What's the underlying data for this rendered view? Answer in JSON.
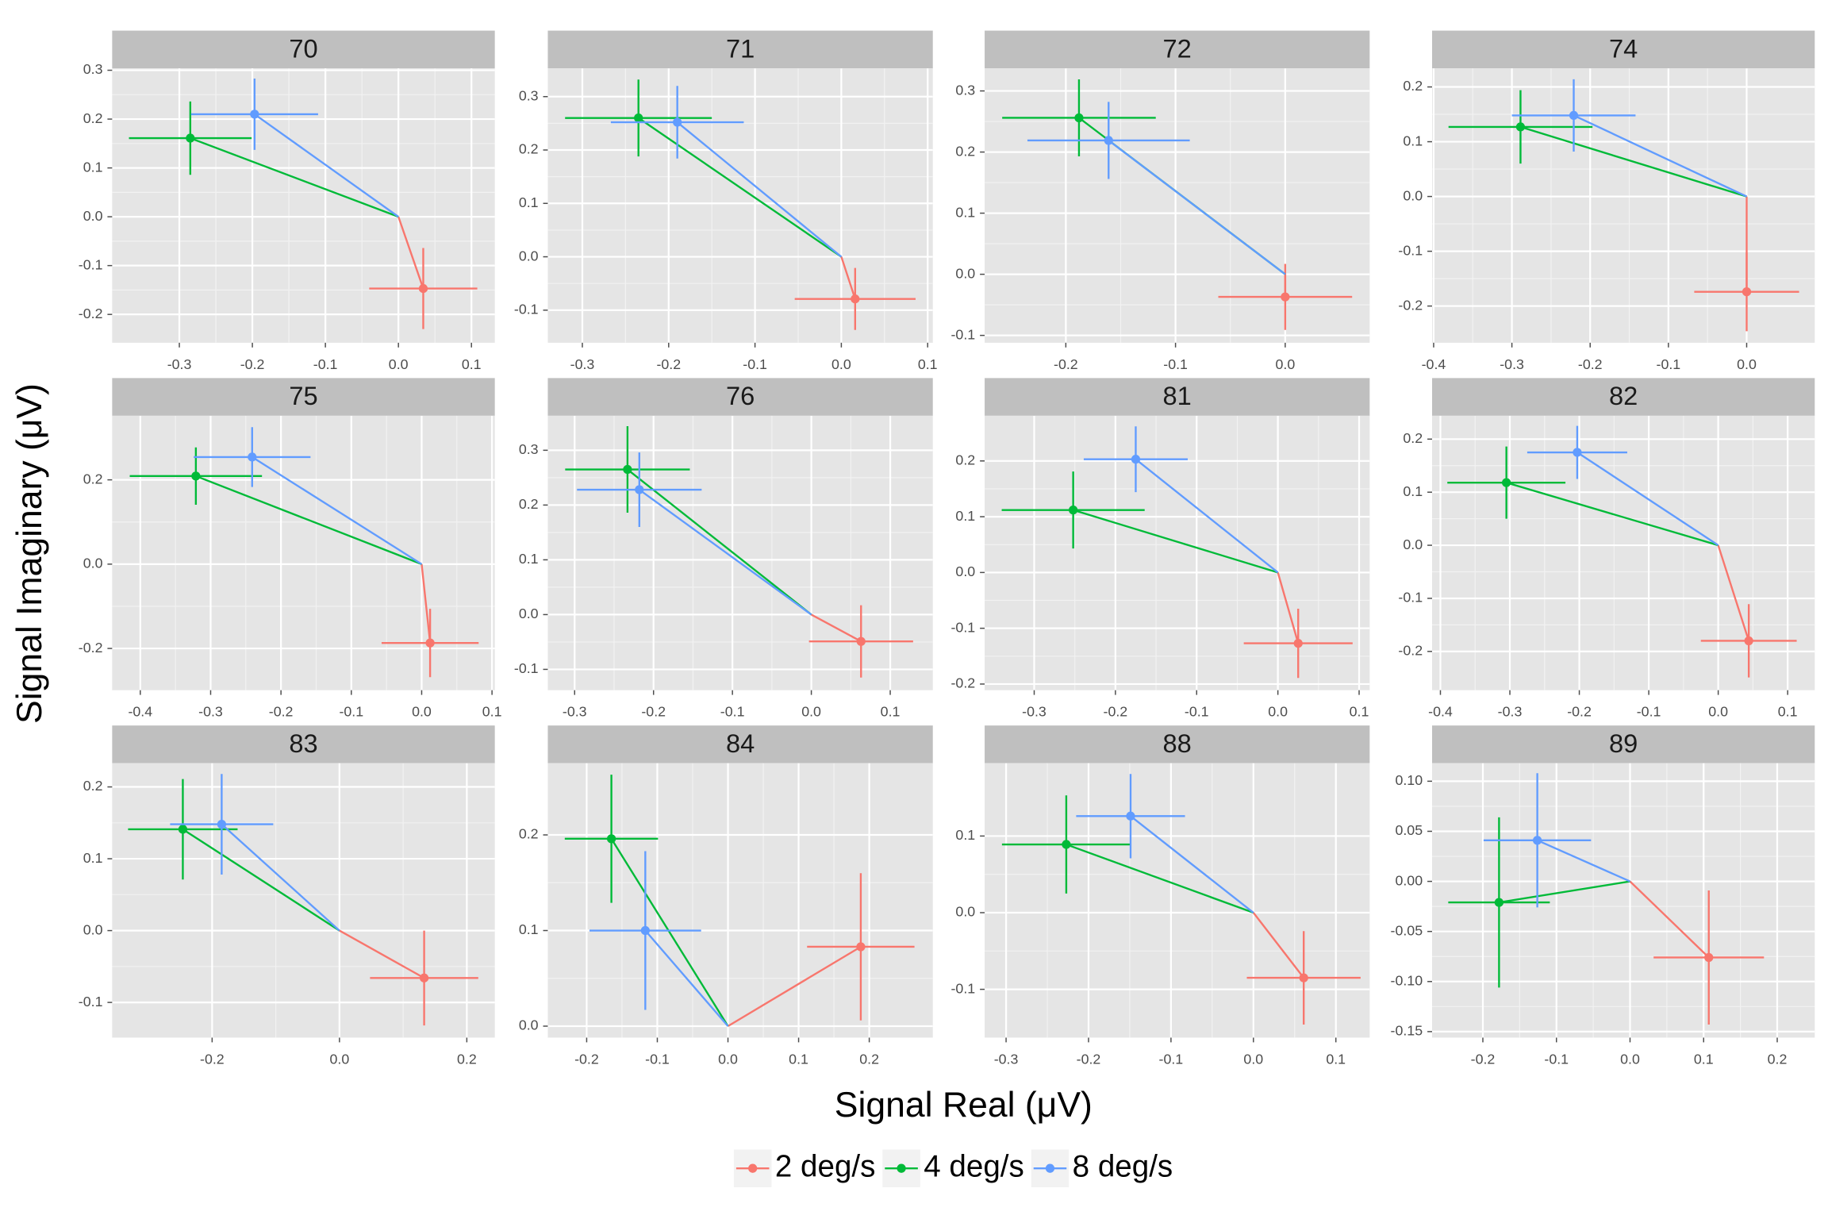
{
  "xlabel": "Signal Real (μV)",
  "ylabel": "Signal Imaginary (μV)",
  "chart_data": [
    {
      "type": "scatter",
      "title": "70",
      "xlim": [
        -0.392,
        0.132
      ],
      "ylim": [
        -0.258,
        0.304
      ],
      "xticks": [
        -0.3,
        -0.2,
        -0.1,
        {
          "value": 0,
          "label": "0.0"
        },
        0.1
      ],
      "yticks": [
        -0.2,
        -0.1,
        {
          "value": 0,
          "label": "0.0"
        },
        0.1,
        0.2,
        0.3
      ],
      "grid": true,
      "series": [
        {
          "name": "2 deg/s",
          "color": "#F8766D",
          "x": [
            0.034
          ],
          "values": [
            -0.147
          ],
          "x_err": [
            0.074
          ],
          "y_err": [
            0.083
          ]
        },
        {
          "name": "4 deg/s",
          "color": "#00BA38",
          "x": [
            -0.285
          ],
          "values": [
            0.161
          ],
          "x_err": [
            0.084
          ],
          "y_err": [
            0.075
          ]
        },
        {
          "name": "8 deg/s",
          "color": "#619CFF",
          "x": [
            -0.197
          ],
          "values": [
            0.21
          ],
          "x_err": [
            0.087
          ],
          "y_err": [
            0.073
          ]
        }
      ]
    },
    {
      "type": "scatter",
      "title": "71",
      "xlim": [
        -0.34,
        0.106
      ],
      "ylim": [
        -0.161,
        0.353
      ],
      "xticks": [
        -0.3,
        -0.2,
        -0.1,
        {
          "value": 0,
          "label": "0.0"
        },
        0.1
      ],
      "yticks": [
        -0.1,
        {
          "value": 0,
          "label": "0.0"
        },
        0.1,
        0.2,
        0.3
      ],
      "grid": true,
      "series": [
        {
          "name": "2 deg/s",
          "color": "#F8766D",
          "x": [
            0.016
          ],
          "values": [
            -0.079
          ],
          "x_err": [
            0.07
          ],
          "y_err": [
            0.058
          ]
        },
        {
          "name": "4 deg/s",
          "color": "#00BA38",
          "x": [
            -0.235
          ],
          "values": [
            0.26
          ],
          "x_err": [
            0.085
          ],
          "y_err": [
            0.072
          ]
        },
        {
          "name": "8 deg/s",
          "color": "#619CFF",
          "x": [
            -0.19
          ],
          "values": [
            0.252
          ],
          "x_err": [
            0.077
          ],
          "y_err": [
            0.068
          ]
        }
      ]
    },
    {
      "type": "scatter",
      "title": "72",
      "xlim": [
        -0.274,
        0.077
      ],
      "ylim": [
        -0.112,
        0.337
      ],
      "xticks": [
        -0.2,
        -0.1,
        {
          "value": 0,
          "label": "0.0"
        }
      ],
      "yticks": [
        -0.1,
        {
          "value": 0,
          "label": "0.0"
        },
        0.1,
        0.2,
        0.3
      ],
      "grid": true,
      "series": [
        {
          "name": "2 deg/s",
          "color": "#F8766D",
          "x": [
            0.0
          ],
          "values": [
            -0.037
          ],
          "x_err": [
            0.061
          ],
          "y_err": [
            0.054
          ]
        },
        {
          "name": "4 deg/s",
          "color": "#00BA38",
          "x": [
            -0.188
          ],
          "values": [
            0.256
          ],
          "x_err": [
            0.07
          ],
          "y_err": [
            0.063
          ]
        },
        {
          "name": "8 deg/s",
          "color": "#619CFF",
          "x": [
            -0.161
          ],
          "values": [
            0.219
          ],
          "x_err": [
            0.074
          ],
          "y_err": [
            0.063
          ]
        }
      ]
    },
    {
      "type": "scatter",
      "title": "74",
      "xlim": [
        -0.402,
        0.087
      ],
      "ylim": [
        -0.267,
        0.234
      ],
      "xticks": [
        -0.4,
        -0.3,
        -0.2,
        -0.1,
        {
          "value": 0,
          "label": "0.0"
        }
      ],
      "yticks": [
        -0.2,
        -0.1,
        {
          "value": 0,
          "label": "0.0"
        },
        0.1,
        0.2
      ],
      "grid": true,
      "series": [
        {
          "name": "2 deg/s",
          "color": "#F8766D",
          "x": [
            0.0
          ],
          "values": [
            -0.174
          ],
          "x_err": [
            0.067
          ],
          "y_err": [
            0.072
          ]
        },
        {
          "name": "4 deg/s",
          "color": "#00BA38",
          "x": [
            -0.289
          ],
          "values": [
            0.127
          ],
          "x_err": [
            0.092
          ],
          "y_err": [
            0.067
          ]
        },
        {
          "name": "8 deg/s",
          "color": "#619CFF",
          "x": [
            -0.221
          ],
          "values": [
            0.148
          ],
          "x_err": [
            0.079
          ],
          "y_err": [
            0.066
          ]
        }
      ]
    },
    {
      "type": "scatter",
      "title": "75",
      "xlim": [
        -0.44,
        0.104
      ],
      "ylim": [
        -0.299,
        0.352
      ],
      "xticks": [
        -0.4,
        -0.3,
        -0.2,
        -0.1,
        {
          "value": 0,
          "label": "0.0"
        },
        0.1
      ],
      "yticks": [
        -0.2,
        {
          "value": 0,
          "label": "0.0"
        },
        0.2
      ],
      "grid": true,
      "series": [
        {
          "name": "2 deg/s",
          "color": "#F8766D",
          "x": [
            0.012
          ],
          "values": [
            -0.187
          ],
          "x_err": [
            0.069
          ],
          "y_err": [
            0.081
          ]
        },
        {
          "name": "4 deg/s",
          "color": "#00BA38",
          "x": [
            -0.321
          ],
          "values": [
            0.209
          ],
          "x_err": [
            0.094
          ],
          "y_err": [
            0.068
          ]
        },
        {
          "name": "8 deg/s",
          "color": "#619CFF",
          "x": [
            -0.241
          ],
          "values": [
            0.254
          ],
          "x_err": [
            0.083
          ],
          "y_err": [
            0.071
          ]
        }
      ]
    },
    {
      "type": "scatter",
      "title": "76",
      "xlim": [
        -0.334,
        0.154
      ],
      "ylim": [
        -0.138,
        0.363
      ],
      "xticks": [
        -0.3,
        -0.2,
        -0.1,
        {
          "value": 0,
          "label": "0.0"
        },
        0.1
      ],
      "yticks": [
        -0.1,
        {
          "value": 0,
          "label": "0.0"
        },
        0.1,
        0.2,
        0.3
      ],
      "grid": true,
      "series": [
        {
          "name": "2 deg/s",
          "color": "#F8766D",
          "x": [
            0.063
          ],
          "values": [
            -0.049
          ],
          "x_err": [
            0.066
          ],
          "y_err": [
            0.066
          ]
        },
        {
          "name": "4 deg/s",
          "color": "#00BA38",
          "x": [
            -0.233
          ],
          "values": [
            0.265
          ],
          "x_err": [
            0.079
          ],
          "y_err": [
            0.079
          ]
        },
        {
          "name": "8 deg/s",
          "color": "#619CFF",
          "x": [
            -0.218
          ],
          "values": [
            0.228
          ],
          "x_err": [
            0.079
          ],
          "y_err": [
            0.068
          ]
        }
      ]
    },
    {
      "type": "scatter",
      "title": "81",
      "xlim": [
        -0.361,
        0.113
      ],
      "ylim": [
        -0.211,
        0.281
      ],
      "xticks": [
        -0.3,
        -0.2,
        -0.1,
        {
          "value": 0,
          "label": "0.0"
        },
        0.1
      ],
      "yticks": [
        -0.2,
        -0.1,
        {
          "value": 0,
          "label": "0.0"
        },
        0.1,
        0.2
      ],
      "grid": true,
      "series": [
        {
          "name": "2 deg/s",
          "color": "#F8766D",
          "x": [
            0.025
          ],
          "values": [
            -0.127
          ],
          "x_err": [
            0.067
          ],
          "y_err": [
            0.062
          ]
        },
        {
          "name": "4 deg/s",
          "color": "#00BA38",
          "x": [
            -0.252
          ],
          "values": [
            0.112
          ],
          "x_err": [
            0.088
          ],
          "y_err": [
            0.069
          ]
        },
        {
          "name": "8 deg/s",
          "color": "#619CFF",
          "x": [
            -0.175
          ],
          "values": [
            0.203
          ],
          "x_err": [
            0.064
          ],
          "y_err": [
            0.059
          ]
        }
      ]
    },
    {
      "type": "scatter",
      "title": "82",
      "xlim": [
        -0.412,
        0.139
      ],
      "ylim": [
        -0.273,
        0.244
      ],
      "xticks": [
        -0.4,
        -0.3,
        -0.2,
        -0.1,
        {
          "value": 0,
          "label": "0.0"
        },
        0.1
      ],
      "yticks": [
        -0.2,
        -0.1,
        {
          "value": 0,
          "label": "0.0"
        },
        0.1,
        0.2
      ],
      "grid": true,
      "series": [
        {
          "name": "2 deg/s",
          "color": "#F8766D",
          "x": [
            0.044
          ],
          "values": [
            -0.18
          ],
          "x_err": [
            0.069
          ],
          "y_err": [
            0.069
          ]
        },
        {
          "name": "4 deg/s",
          "color": "#00BA38",
          "x": [
            -0.305
          ],
          "values": [
            0.118
          ],
          "x_err": [
            0.085
          ],
          "y_err": [
            0.068
          ]
        },
        {
          "name": "8 deg/s",
          "color": "#619CFF",
          "x": [
            -0.203
          ],
          "values": [
            0.175
          ],
          "x_err": [
            0.072
          ],
          "y_err": [
            0.05
          ]
        }
      ]
    },
    {
      "type": "scatter",
      "title": "83",
      "xlim": [
        -0.357,
        0.244
      ],
      "ylim": [
        -0.149,
        0.233
      ],
      "xticks": [
        -0.2,
        {
          "value": 0,
          "label": "0.0"
        },
        0.2
      ],
      "yticks": [
        -0.1,
        {
          "value": 0,
          "label": "0.0"
        },
        0.1,
        0.2
      ],
      "grid": true,
      "series": [
        {
          "name": "2 deg/s",
          "color": "#F8766D",
          "x": [
            0.133
          ],
          "values": [
            -0.066
          ],
          "x_err": [
            0.085
          ],
          "y_err": [
            0.066
          ]
        },
        {
          "name": "4 deg/s",
          "color": "#00BA38",
          "x": [
            -0.246
          ],
          "values": [
            0.141
          ],
          "x_err": [
            0.086
          ],
          "y_err": [
            0.07
          ]
        },
        {
          "name": "8 deg/s",
          "color": "#619CFF",
          "x": [
            -0.185
          ],
          "values": [
            0.148
          ],
          "x_err": [
            0.081
          ],
          "y_err": [
            0.07
          ]
        }
      ]
    },
    {
      "type": "scatter",
      "title": "84",
      "xlim": [
        -0.255,
        0.29
      ],
      "ylim": [
        -0.012,
        0.275
      ],
      "xticks": [
        -0.2,
        -0.1,
        {
          "value": 0,
          "label": "0.0"
        },
        0.1,
        0.2
      ],
      "yticks": [
        {
          "value": 0,
          "label": "0.0"
        },
        0.1,
        0.2
      ],
      "grid": true,
      "series": [
        {
          "name": "2 deg/s",
          "color": "#F8766D",
          "x": [
            0.188
          ],
          "values": [
            0.083
          ],
          "x_err": [
            0.076
          ],
          "y_err": [
            0.077
          ]
        },
        {
          "name": "4 deg/s",
          "color": "#00BA38",
          "x": [
            -0.165
          ],
          "values": [
            0.196
          ],
          "x_err": [
            0.066
          ],
          "y_err": [
            0.067
          ]
        },
        {
          "name": "8 deg/s",
          "color": "#619CFF",
          "x": [
            -0.117
          ],
          "values": [
            0.1
          ],
          "x_err": [
            0.079
          ],
          "y_err": [
            0.083
          ]
        }
      ]
    },
    {
      "type": "scatter",
      "title": "88",
      "xlim": [
        -0.326,
        0.141
      ],
      "ylim": [
        -0.163,
        0.195
      ],
      "xticks": [
        -0.3,
        -0.2,
        -0.1,
        {
          "value": 0,
          "label": "0.0"
        },
        0.1
      ],
      "yticks": [
        -0.1,
        {
          "value": 0,
          "label": "0.0"
        },
        0.1
      ],
      "grid": true,
      "series": [
        {
          "name": "2 deg/s",
          "color": "#F8766D",
          "x": [
            0.061
          ],
          "values": [
            -0.085
          ],
          "x_err": [
            0.069
          ],
          "y_err": [
            0.061
          ]
        },
        {
          "name": "4 deg/s",
          "color": "#00BA38",
          "x": [
            -0.227
          ],
          "values": [
            0.089
          ],
          "x_err": [
            0.078
          ],
          "y_err": [
            0.064
          ]
        },
        {
          "name": "8 deg/s",
          "color": "#619CFF",
          "x": [
            -0.149
          ],
          "values": [
            0.126
          ],
          "x_err": [
            0.066
          ],
          "y_err": [
            0.055
          ]
        }
      ]
    },
    {
      "type": "scatter",
      "title": "89",
      "xlim": [
        -0.269,
        0.251
      ],
      "ylim": [
        -0.156,
        0.118
      ],
      "xticks": [
        -0.2,
        -0.1,
        {
          "value": 0,
          "label": "0.0"
        },
        0.1,
        0.2
      ],
      "yticks": [
        {
          "value": -0.15,
          "label": "-0.15"
        },
        {
          "value": -0.1,
          "label": "-0.10"
        },
        -0.05,
        {
          "value": 0,
          "label": "0.00"
        },
        0.05,
        {
          "value": 0.1,
          "label": "0.10"
        }
      ],
      "grid": true,
      "series": [
        {
          "name": "2 deg/s",
          "color": "#F8766D",
          "x": [
            0.107
          ],
          "values": [
            -0.076
          ],
          "x_err": [
            0.075
          ],
          "y_err": [
            0.067
          ]
        },
        {
          "name": "4 deg/s",
          "color": "#00BA38",
          "x": [
            -0.178
          ],
          "values": [
            -0.021
          ],
          "x_err": [
            0.069
          ],
          "y_err": [
            0.085
          ]
        },
        {
          "name": "8 deg/s",
          "color": "#619CFF",
          "x": [
            -0.126
          ],
          "values": [
            0.041
          ],
          "x_err": [
            0.073
          ],
          "y_err": [
            0.067
          ]
        }
      ]
    }
  ]
}
